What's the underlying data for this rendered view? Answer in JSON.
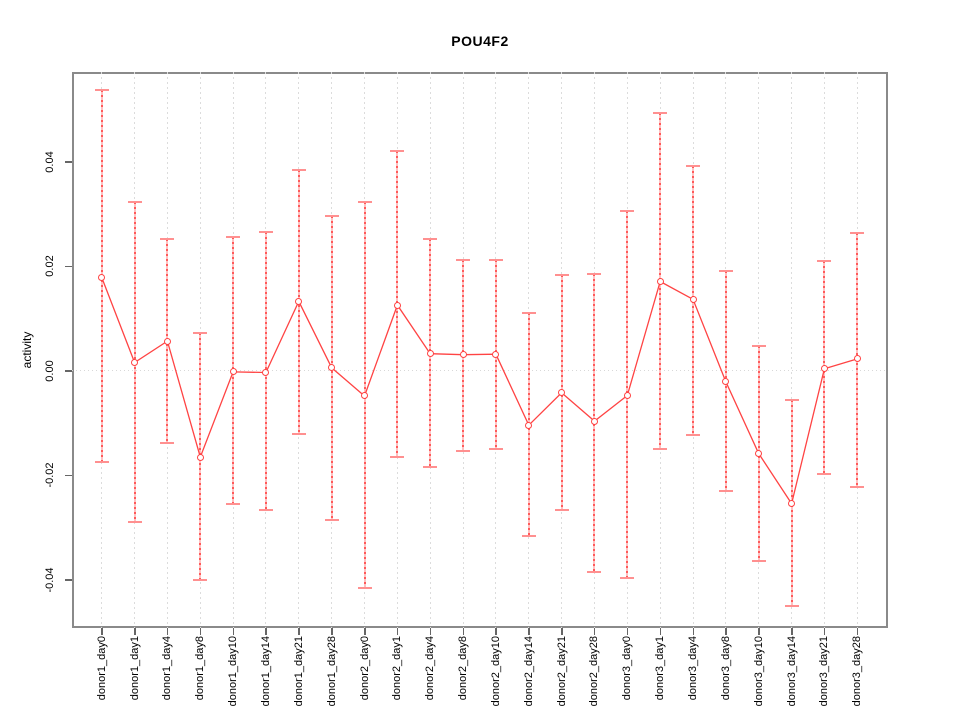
{
  "chart_data": {
    "type": "line",
    "title": "POU4F2",
    "xlabel": "",
    "ylabel": "activity",
    "legend": "none",
    "grid": {
      "vertical": "dashed light gray at every category",
      "horizontal": "dotted light line at y=0 only"
    },
    "categories": [
      "donor1_day0",
      "donor1_day1",
      "donor1_day4",
      "donor1_day8",
      "donor1_day10",
      "donor1_day14",
      "donor1_day21",
      "donor1_day28",
      "donor2_day0",
      "donor2_day1",
      "donor2_day4",
      "donor2_day8",
      "donor2_day10",
      "donor2_day14",
      "donor2_day21",
      "donor2_day28",
      "donor3_day0",
      "donor3_day1",
      "donor3_day4",
      "donor3_day8",
      "donor3_day10",
      "donor3_day14",
      "donor3_day21",
      "donor3_day28"
    ],
    "series": [
      {
        "name": "activity",
        "role": "center",
        "values": [
          0.0179,
          0.0016,
          0.0057,
          -0.0165,
          -0.0002,
          -0.0003,
          0.0133,
          0.0006,
          -0.0048,
          0.0126,
          0.0033,
          0.0031,
          0.0032,
          -0.0104,
          -0.0042,
          -0.0096,
          -0.0047,
          0.0171,
          0.0137,
          -0.0021,
          -0.0158,
          -0.0254,
          0.0004,
          0.0023
        ]
      },
      {
        "name": "ci_upper",
        "role": "error-bar-top",
        "values": [
          0.0537,
          0.0324,
          0.0253,
          0.0072,
          0.0256,
          0.0265,
          0.0385,
          0.0297,
          0.0323,
          0.042,
          0.0253,
          0.0212,
          0.0212,
          0.011,
          0.0183,
          0.0186,
          0.0306,
          0.0493,
          0.0392,
          0.0192,
          0.0048,
          -0.0056,
          0.021,
          0.0264
        ]
      },
      {
        "name": "ci_lower",
        "role": "error-bar-bottom",
        "values": [
          -0.0174,
          -0.029,
          -0.0138,
          -0.0401,
          -0.0255,
          -0.0266,
          -0.0121,
          -0.0285,
          -0.0415,
          -0.0165,
          -0.0183,
          -0.0154,
          -0.0149,
          -0.0316,
          -0.0267,
          -0.0385,
          -0.0397,
          -0.0149,
          -0.0122,
          -0.0229,
          -0.0363,
          -0.0449,
          -0.0197,
          -0.0222
        ]
      }
    ],
    "ylim": [
      -0.0492,
      0.0572
    ],
    "yticks": [
      {
        "value": 0.04,
        "label": "0.04"
      },
      {
        "value": 0.02,
        "label": "0.02"
      },
      {
        "value": 0.0,
        "label": "0.00"
      },
      {
        "value": -0.02,
        "label": "-0.02"
      },
      {
        "value": -0.04,
        "label": "-0.04"
      }
    ],
    "colors": {
      "point": "#ff4343",
      "line": "#ff4343",
      "error_bar_fill": "#ffc0c0",
      "error_bar_dot": "#ff5a5a",
      "error_bar_cap": "#ff9090",
      "grid": "#dcdcdc",
      "zero_line": "#d8d8d8",
      "axis_box": "#8a8a8a",
      "tick": "#666666",
      "text": "#000000"
    }
  }
}
